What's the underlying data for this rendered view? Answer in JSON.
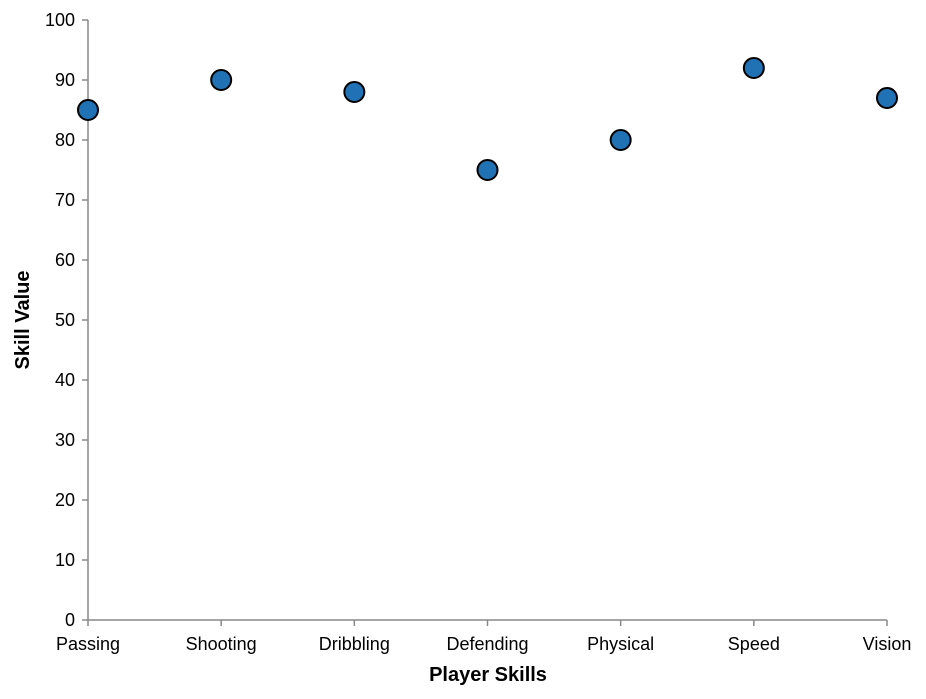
{
  "chart_data": {
    "type": "scatter",
    "categories": [
      "Passing",
      "Shooting",
      "Dribbling",
      "Defending",
      "Physical",
      "Speed",
      "Vision"
    ],
    "values": [
      85,
      90,
      88,
      75,
      80,
      92,
      87
    ],
    "xlabel": "Player Skills",
    "ylabel": "Skill Value",
    "ylim": [
      0,
      100
    ],
    "yticks": [
      0,
      10,
      20,
      30,
      40,
      50,
      60,
      70,
      80,
      90,
      100
    ],
    "grid": false,
    "point_color": "#2172b4",
    "point_stroke": "#000000",
    "axis_color": "#888888"
  }
}
